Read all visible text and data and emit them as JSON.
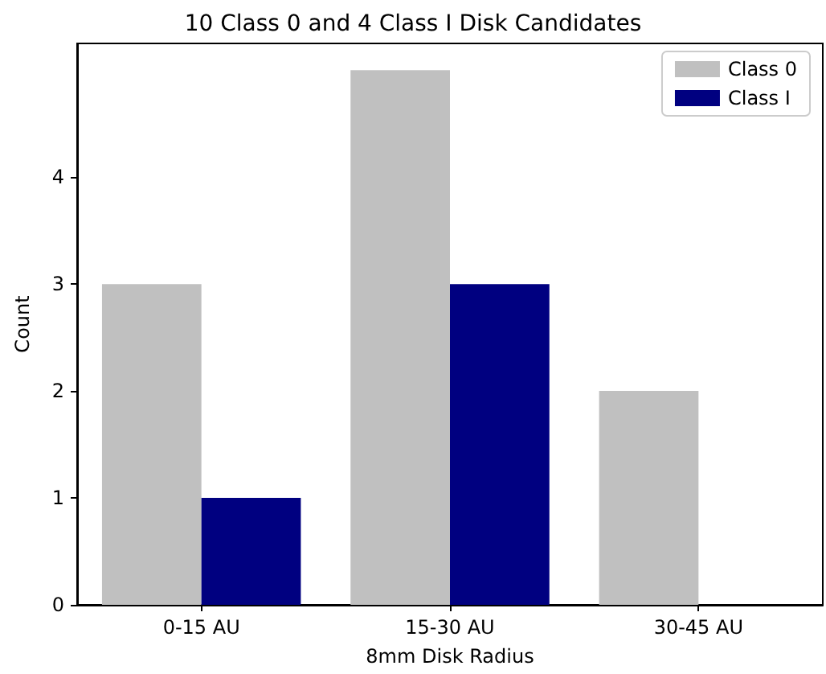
{
  "chart_data": {
    "type": "bar",
    "title": "10 Class 0 and 4 Class I Disk Candidates",
    "xlabel": "8mm Disk Radius",
    "ylabel": "Count",
    "categories": [
      "0-15 AU",
      "15-30 AU",
      "30-45 AU"
    ],
    "series": [
      {
        "name": "Class 0",
        "color": "#c0c0c0",
        "values": [
          3,
          5,
          2
        ]
      },
      {
        "name": "Class I",
        "color": "#000080",
        "values": [
          1,
          3,
          0
        ]
      }
    ],
    "ylim": [
      0,
      5.25
    ],
    "yticks": [
      0,
      1,
      2,
      3,
      4
    ],
    "legend": "top right"
  }
}
